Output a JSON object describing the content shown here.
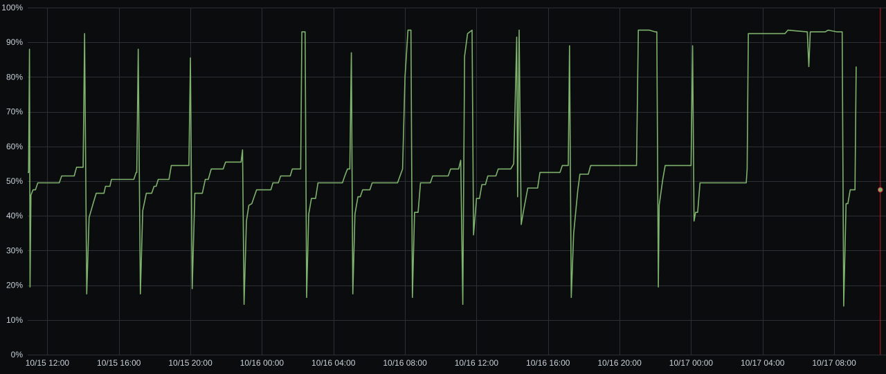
{
  "chart_data": {
    "type": "line",
    "ylim": [
      0,
      100
    ],
    "xlim": [
      "10/15 10:54",
      "10/17 10:54"
    ],
    "y_ticks": [
      "0%",
      "10%",
      "20%",
      "30%",
      "40%",
      "50%",
      "60%",
      "70%",
      "80%",
      "90%",
      "100%"
    ],
    "x_ticks": [
      {
        "t": "10/15 12:00",
        "label": "10/15 12:00"
      },
      {
        "t": "10/15 16:00",
        "label": "10/15 16:00"
      },
      {
        "t": "10/15 20:00",
        "label": "10/15 20:00"
      },
      {
        "t": "10/16 00:00",
        "label": "10/16 00:00"
      },
      {
        "t": "10/16 04:00",
        "label": "10/16 04:00"
      },
      {
        "t": "10/16 08:00",
        "label": "10/16 08:00"
      },
      {
        "t": "10/16 12:00",
        "label": "10/16 12:00"
      },
      {
        "t": "10/16 16:00",
        "label": "10/16 16:00"
      },
      {
        "t": "10/16 20:00",
        "label": "10/16 20:00"
      },
      {
        "t": "10/17 00:00",
        "label": "10/17 00:00"
      },
      {
        "t": "10/17 04:00",
        "label": "10/17 04:00"
      },
      {
        "t": "10/17 08:00",
        "label": "10/17 08:00"
      }
    ],
    "grid": true,
    "legend": "none",
    "series_color": "#7eb26d",
    "cursor_color": "#c4162a",
    "cursor_time": "10/17 10:35",
    "cursor_value": 47.5,
    "series": [
      {
        "points": [
          [
            "10/15 10:54",
            52.5
          ],
          [
            "10/15 10:57",
            52.5
          ],
          [
            "10/15 11:00",
            88
          ],
          [
            "10/15 11:02",
            19.5
          ],
          [
            "10/15 11:05",
            46
          ],
          [
            "10/15 11:12",
            47.5
          ],
          [
            "10/15 11:20",
            47.5
          ],
          [
            "10/15 11:28",
            49.5
          ],
          [
            "10/15 12:40",
            49.5
          ],
          [
            "10/15 12:48",
            51.5
          ],
          [
            "10/15 13:30",
            51.5
          ],
          [
            "10/15 13:38",
            54
          ],
          [
            "10/15 14:00",
            54
          ],
          [
            "10/15 14:05",
            92.5
          ],
          [
            "10/15 14:12",
            17.5
          ],
          [
            "10/15 14:20",
            39.5
          ],
          [
            "10/15 14:35",
            44
          ],
          [
            "10/15 14:44",
            46.5
          ],
          [
            "10/15 15:10",
            46.5
          ],
          [
            "10/15 15:15",
            48.5
          ],
          [
            "10/15 15:30",
            48.5
          ],
          [
            "10/15 15:35",
            50.5
          ],
          [
            "10/15 16:50",
            50.5
          ],
          [
            "10/15 16:58",
            52.5
          ],
          [
            "10/15 17:00",
            52.5
          ],
          [
            "10/15 17:05",
            88
          ],
          [
            "10/15 17:12",
            17.5
          ],
          [
            "10/15 17:20",
            41.5
          ],
          [
            "10/15 17:32",
            46.5
          ],
          [
            "10/15 17:50",
            46.5
          ],
          [
            "10/15 17:58",
            48.5
          ],
          [
            "10/15 18:05",
            48.5
          ],
          [
            "10/15 18:12",
            50.5
          ],
          [
            "10/15 18:48",
            50.5
          ],
          [
            "10/15 18:56",
            54.5
          ],
          [
            "10/15 19:55",
            54.5
          ],
          [
            "10/15 20:00",
            85.5
          ],
          [
            "10/15 20:06",
            19
          ],
          [
            "10/15 20:15",
            46.5
          ],
          [
            "10/15 20:40",
            46.5
          ],
          [
            "10/15 20:50",
            50.5
          ],
          [
            "10/15 21:00",
            50.5
          ],
          [
            "10/15 21:10",
            53.5
          ],
          [
            "10/15 21:50",
            53.5
          ],
          [
            "10/15 21:58",
            55.5
          ],
          [
            "10/15 22:50",
            55.5
          ],
          [
            "10/15 22:55",
            59
          ],
          [
            "10/15 23:00",
            14.5
          ],
          [
            "10/15 23:08",
            38.5
          ],
          [
            "10/15 23:16",
            43
          ],
          [
            "10/15 23:26",
            43.5
          ],
          [
            "10/15 23:34",
            45.5
          ],
          [
            "10/15 23:42",
            47.5
          ],
          [
            "10/16 00:30",
            47.5
          ],
          [
            "10/16 00:37",
            49.5
          ],
          [
            "10/16 00:55",
            49.5
          ],
          [
            "10/16 01:03",
            51.5
          ],
          [
            "10/16 01:35",
            51.5
          ],
          [
            "10/16 01:42",
            53.5
          ],
          [
            "10/16 02:10",
            53.5
          ],
          [
            "10/16 02:14",
            93
          ],
          [
            "10/16 02:25",
            93
          ],
          [
            "10/16 02:30",
            16.5
          ],
          [
            "10/16 02:37",
            40.5
          ],
          [
            "10/16 02:46",
            45
          ],
          [
            "10/16 03:00",
            45
          ],
          [
            "10/16 03:08",
            49.5
          ],
          [
            "10/16 04:30",
            49.5
          ],
          [
            "10/16 04:38",
            51.5
          ],
          [
            "10/16 04:47",
            53.5
          ],
          [
            "10/16 04:55",
            53.5
          ],
          [
            "10/16 05:00",
            87
          ],
          [
            "10/16 05:05",
            17.5
          ],
          [
            "10/16 05:12",
            40.5
          ],
          [
            "10/16 05:22",
            45.5
          ],
          [
            "10/16 05:30",
            45.5
          ],
          [
            "10/16 05:38",
            47.5
          ],
          [
            "10/16 06:02",
            47.5
          ],
          [
            "10/16 06:10",
            49.5
          ],
          [
            "10/16 07:35",
            49.5
          ],
          [
            "10/16 07:52",
            53.5
          ],
          [
            "10/16 08:00",
            80
          ],
          [
            "10/16 08:10",
            93.5
          ],
          [
            "10/16 08:20",
            93.5
          ],
          [
            "10/16 08:25",
            16.5
          ],
          [
            "10/16 08:32",
            41
          ],
          [
            "10/16 08:44",
            41
          ],
          [
            "10/16 08:52",
            49.5
          ],
          [
            "10/16 09:25",
            49.5
          ],
          [
            "10/16 09:33",
            51.5
          ],
          [
            "10/16 10:25",
            51.5
          ],
          [
            "10/16 10:33",
            53.5
          ],
          [
            "10/16 11:00",
            53.5
          ],
          [
            "10/16 11:07",
            56
          ],
          [
            "10/16 11:14",
            14.5
          ],
          [
            "10/16 11:20",
            86
          ],
          [
            "10/16 11:30",
            92.5
          ],
          [
            "10/16 11:45",
            93.5
          ],
          [
            "10/16 11:50",
            34.5
          ],
          [
            "10/16 12:00",
            45
          ],
          [
            "10/16 12:10",
            45
          ],
          [
            "10/16 12:18",
            49
          ],
          [
            "10/16 12:30",
            49
          ],
          [
            "10/16 12:38",
            51.5
          ],
          [
            "10/16 13:05",
            51.5
          ],
          [
            "10/16 13:13",
            53.5
          ],
          [
            "10/16 13:55",
            53.5
          ],
          [
            "10/16 14:05",
            55
          ],
          [
            "10/16 14:15",
            91.5
          ],
          [
            "10/16 14:18",
            45.5
          ],
          [
            "10/16 14:23",
            93.5
          ],
          [
            "10/16 14:30",
            37.5
          ],
          [
            "10/16 14:38",
            41.5
          ],
          [
            "10/16 14:52",
            48
          ],
          [
            "10/16 15:25",
            48
          ],
          [
            "10/16 15:33",
            52.5
          ],
          [
            "10/16 16:40",
            52.5
          ],
          [
            "10/16 16:48",
            54.5
          ],
          [
            "10/16 17:08",
            54.5
          ],
          [
            "10/16 17:12",
            89
          ],
          [
            "10/16 17:18",
            16.5
          ],
          [
            "10/16 17:26",
            35
          ],
          [
            "10/16 17:40",
            47.5
          ],
          [
            "10/16 17:47",
            52
          ],
          [
            "10/16 18:15",
            52
          ],
          [
            "10/16 18:23",
            54.5
          ],
          [
            "10/16 20:57",
            54.5
          ],
          [
            "10/16 21:03",
            93.5
          ],
          [
            "10/16 21:40",
            93.5
          ],
          [
            "10/16 22:00",
            93
          ],
          [
            "10/16 22:05",
            93
          ],
          [
            "10/16 22:10",
            19.5
          ],
          [
            "10/16 22:13",
            43
          ],
          [
            "10/16 22:25",
            50.5
          ],
          [
            "10/16 22:33",
            54.5
          ],
          [
            "10/17 00:00",
            54.5
          ],
          [
            "10/17 00:05",
            89
          ],
          [
            "10/17 00:10",
            38.5
          ],
          [
            "10/17 00:15",
            41
          ],
          [
            "10/17 00:22",
            41
          ],
          [
            "10/17 00:30",
            49.5
          ],
          [
            "10/17 03:05",
            49.5
          ],
          [
            "10/17 03:08",
            53.5
          ],
          [
            "10/17 03:12",
            92.5
          ],
          [
            "10/17 05:15",
            92.5
          ],
          [
            "10/17 05:25",
            93.5
          ],
          [
            "10/17 06:30",
            93
          ],
          [
            "10/17 06:35",
            83
          ],
          [
            "10/17 06:40",
            93
          ],
          [
            "10/17 07:30",
            93
          ],
          [
            "10/17 07:40",
            93.5
          ],
          [
            "10/17 08:10",
            93
          ],
          [
            "10/17 08:27",
            93
          ],
          [
            "10/17 08:32",
            14
          ],
          [
            "10/17 08:40",
            43.5
          ],
          [
            "10/17 08:46",
            43.5
          ],
          [
            "10/17 08:54",
            47.5
          ],
          [
            "10/17 09:04",
            47.5
          ],
          [
            "10/17 09:10",
            47.5
          ],
          [
            "10/17 09:14",
            83
          ]
        ]
      }
    ]
  }
}
